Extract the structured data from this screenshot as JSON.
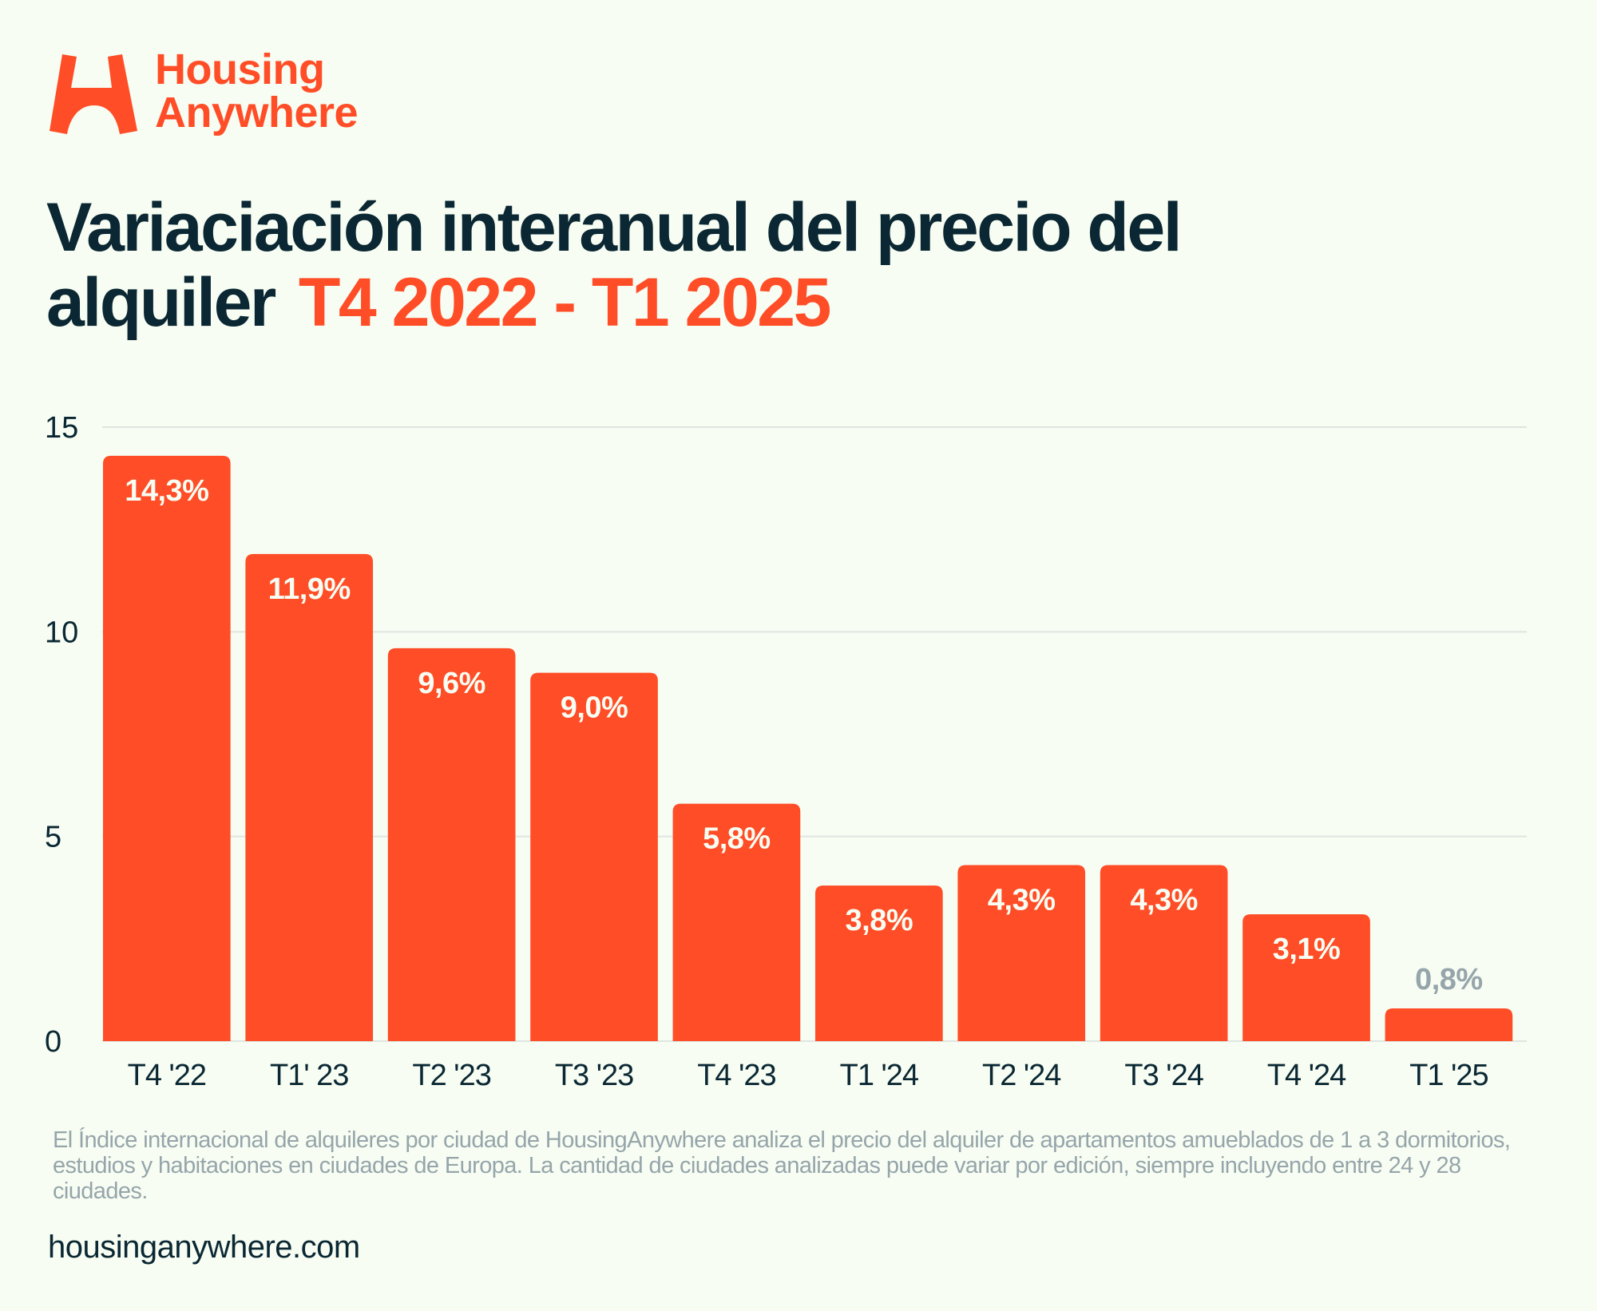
{
  "brand": {
    "name_line1": "Housing",
    "name_line2": "Anywhere",
    "logo_icon": "housinganywhere-h-arch-logo",
    "color_primary": "#ff4d27",
    "color_text": "#0a2733",
    "color_muted": "#96a5ab",
    "color_background": "#f7fdf2"
  },
  "title": {
    "line1": "Variaciación interanual del precio del",
    "line2_dark": "alquiler",
    "line2_accent": "T4 2022 - T1 2025"
  },
  "chart_data": {
    "type": "bar",
    "title": "Variaciación interanual del precio del alquiler T4 2022 - T1 2025",
    "xlabel": "",
    "ylabel": "",
    "categories": [
      "T4 '22",
      "T1' 23",
      "T2 '23",
      "T3 '23",
      "T4 '23",
      "T1 '24",
      "T2 '24",
      "T3 '24",
      "T4 '24",
      "T1 '25"
    ],
    "values": [
      14.3,
      11.9,
      9.6,
      9.0,
      5.8,
      3.8,
      4.3,
      4.3,
      3.1,
      0.8
    ],
    "data_labels": [
      "14,3%",
      "11,9%",
      "9,6%",
      "9,0%",
      "5,8%",
      "3,8%",
      "4,3%",
      "4,3%",
      "3,1%",
      "0,8%"
    ],
    "label_position": [
      "inside",
      "inside",
      "inside",
      "inside",
      "inside",
      "inside",
      "inside",
      "inside",
      "inside",
      "above"
    ],
    "ylim": [
      0,
      15
    ],
    "yticks": [
      0,
      5,
      10,
      15
    ],
    "ytick_labels": [
      "0",
      "5",
      "10",
      "15"
    ],
    "grid": true,
    "legend": "none",
    "bar_color": "#ff4d27",
    "label_color_inside": "#f7fdf2",
    "label_color_outside": "#96a5ab",
    "grid_color": "#dfe5e0"
  },
  "footnote": "El Índice internacional de alquileres por ciudad de HousingAnywhere analiza el precio del alquiler de apartamentos amueblados de 1 a 3 dormitorios, estudios y habitaciones en ciudades de Europa. La cantidad de ciudades analizadas puede variar por edición, siempre incluyendo entre 24 y 28 ciudades.",
  "website": "housinganywhere.com"
}
